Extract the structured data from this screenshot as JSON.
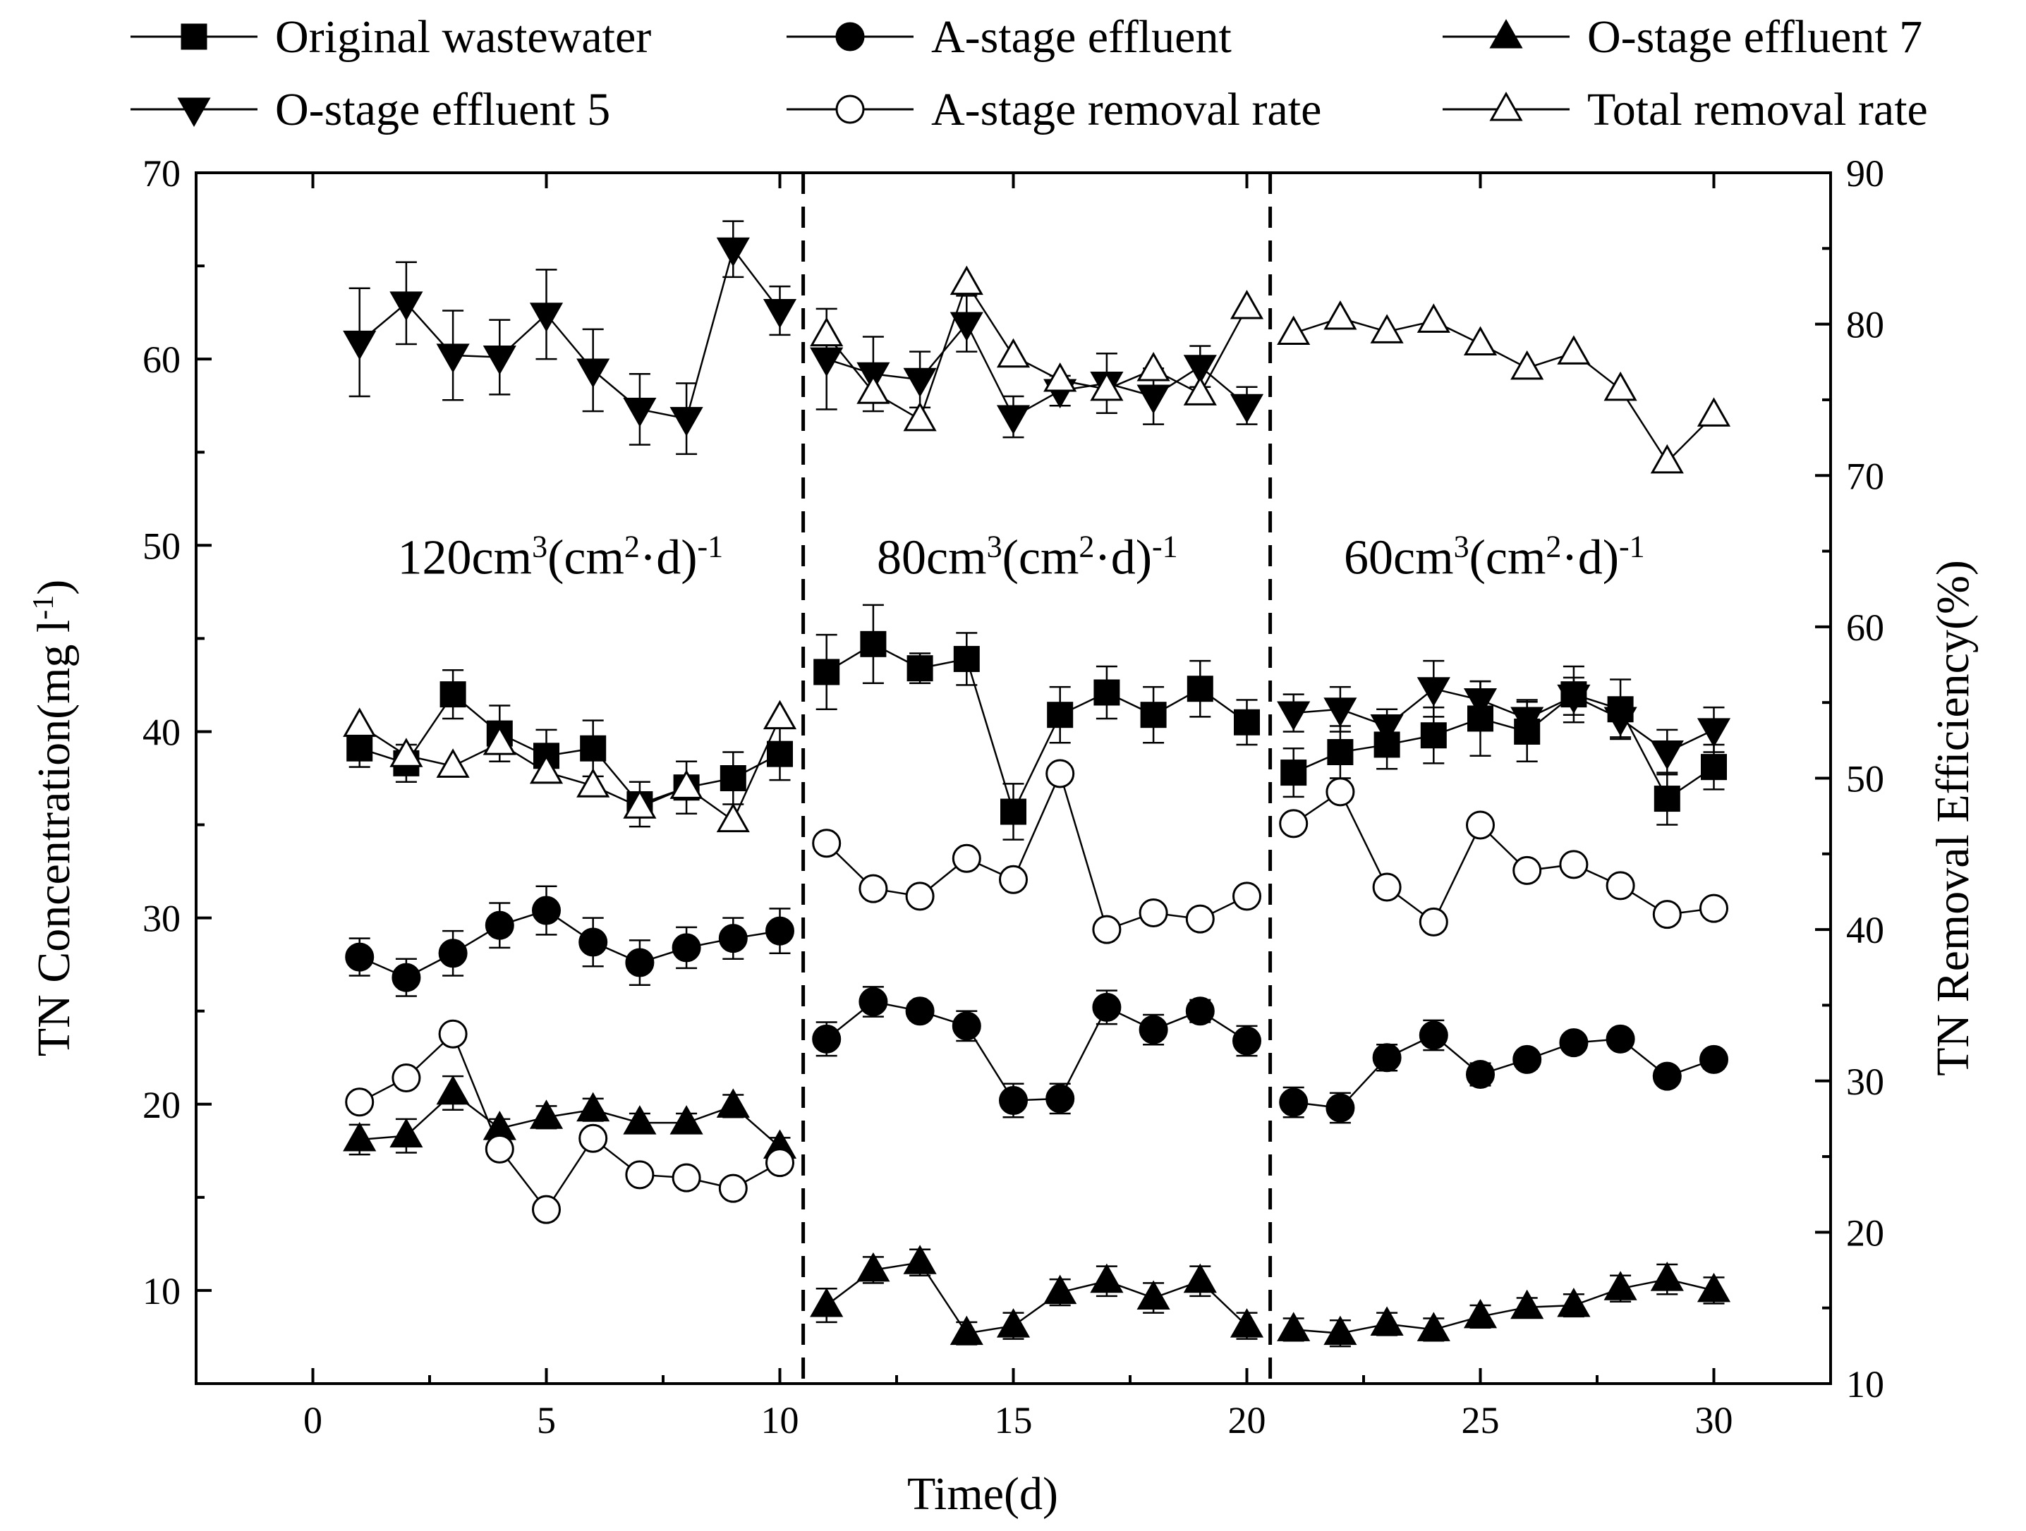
{
  "chart_data": {
    "type": "line",
    "xlabel": "Time(d)",
    "ylabel_left": "TN Concentration(mg l-1)",
    "ylabel_right": "TN Removal Efficiency(%)",
    "xlim": [
      -2.5,
      32.5
    ],
    "ylim_left": [
      5,
      70
    ],
    "ylim_right": [
      10,
      90
    ],
    "xticks": [
      "0",
      "5",
      "10",
      "15",
      "20",
      "25",
      "30"
    ],
    "yticks_left": [
      "10",
      "20",
      "30",
      "40",
      "50",
      "60",
      "70"
    ],
    "yticks_right": [
      "10",
      "20",
      "30",
      "40",
      "50",
      "60",
      "70",
      "80",
      "90"
    ],
    "dividers": [
      10.5,
      20.5
    ],
    "phases": [
      {
        "base": "120cm",
        "s1": "3",
        "mid": "(cm",
        "s2": "2",
        "tail": "·d)",
        "s3": "-1",
        "x": 5.3
      },
      {
        "base": "80cm",
        "s1": "3",
        "mid": "(cm",
        "s2": "2",
        "tail": "·d)",
        "s3": "-1",
        "x": 15.3
      },
      {
        "base": "60cm",
        "s1": "3",
        "mid": "(cm",
        "s2": "2",
        "tail": "·d)",
        "s3": "-1",
        "x": 25.3
      }
    ],
    "series": [
      {
        "name": "Original wastewater",
        "marker": "square",
        "filled": true,
        "axis": "left",
        "x": [
          1,
          2,
          3,
          4,
          5,
          6,
          7,
          8,
          9,
          10,
          11,
          12,
          13,
          14,
          15,
          16,
          17,
          18,
          19,
          20,
          21,
          22,
          23,
          24,
          25,
          26,
          27,
          28,
          29,
          30
        ],
        "y": [
          39.1,
          38.3,
          42.0,
          39.9,
          38.7,
          39.1,
          36.1,
          37.0,
          37.5,
          38.8,
          43.2,
          44.7,
          43.4,
          43.9,
          35.7,
          40.9,
          42.1,
          40.9,
          42.3,
          40.5,
          37.8,
          38.9,
          39.3,
          39.8,
          40.7,
          40.0,
          42.0,
          41.2,
          36.4,
          38.1
        ],
        "err": [
          1.0,
          1.0,
          1.3,
          1.5,
          1.4,
          1.5,
          1.2,
          1.4,
          1.4,
          1.4,
          2.0,
          2.1,
          0.8,
          1.4,
          1.5,
          1.5,
          1.4,
          1.5,
          1.5,
          1.2,
          1.3,
          1.4,
          1.3,
          1.5,
          2.0,
          1.6,
          1.5,
          1.6,
          1.4,
          1.2
        ]
      },
      {
        "name": "A-stage effluent",
        "marker": "circle",
        "filled": true,
        "axis": "left",
        "x": [
          1,
          2,
          3,
          4,
          5,
          6,
          7,
          8,
          9,
          10,
          11,
          12,
          13,
          14,
          15,
          16,
          17,
          18,
          19,
          20,
          21,
          22,
          23,
          24,
          25,
          26,
          27,
          28,
          29,
          30
        ],
        "y": [
          27.9,
          26.8,
          28.1,
          29.6,
          30.4,
          28.7,
          27.6,
          28.4,
          28.9,
          29.3,
          23.5,
          25.5,
          25.0,
          24.2,
          20.2,
          20.3,
          25.2,
          24.0,
          25.0,
          23.4,
          20.1,
          19.8,
          22.5,
          23.7,
          21.6,
          22.4,
          23.3,
          23.5,
          21.5,
          22.4
        ],
        "err": [
          1.0,
          1.0,
          1.2,
          1.2,
          1.3,
          1.3,
          1.2,
          1.1,
          1.1,
          1.2,
          0.9,
          0.8,
          0.5,
          0.8,
          0.9,
          0.8,
          0.9,
          0.8,
          0.6,
          0.8,
          0.8,
          0.8,
          0.7,
          0.8,
          0.6,
          0.5,
          0.4,
          0.4,
          0.4,
          0.5
        ]
      },
      {
        "name": "O-stage effluent 7",
        "marker": "triangle-up",
        "filled": true,
        "axis": "left",
        "x": [
          1,
          2,
          3,
          4,
          5,
          6,
          7,
          8,
          9,
          10,
          11,
          12,
          13,
          14,
          15,
          16,
          17,
          18,
          19,
          20,
          21,
          22,
          23,
          24,
          25,
          26,
          27,
          28,
          29,
          30
        ],
        "y": [
          18.1,
          18.3,
          20.6,
          18.7,
          19.3,
          19.7,
          19.0,
          19.0,
          19.9,
          17.7,
          9.2,
          11.1,
          11.5,
          7.7,
          8.1,
          9.9,
          10.5,
          9.6,
          10.5,
          8.1,
          7.9,
          7.7,
          8.2,
          7.9,
          8.6,
          9.1,
          9.2,
          10.1,
          10.6,
          10.0
        ],
        "err": [
          0.8,
          0.9,
          0.9,
          0.5,
          0.6,
          0.6,
          0.5,
          0.5,
          0.6,
          0.5,
          0.9,
          0.7,
          0.7,
          0.6,
          0.7,
          0.7,
          0.8,
          0.8,
          0.8,
          0.7,
          0.6,
          0.7,
          0.6,
          0.6,
          0.6,
          0.5,
          0.6,
          0.7,
          0.8,
          0.7
        ]
      },
      {
        "name": "O-stage effluent 5",
        "marker": "triangle-down",
        "filled": true,
        "axis": "left",
        "x": [
          1,
          2,
          3,
          4,
          5,
          6,
          7,
          8,
          9,
          10,
          11,
          12,
          13,
          14,
          15,
          16,
          17,
          18,
          19,
          20,
          21,
          22,
          23,
          24,
          25,
          26,
          27,
          28,
          29,
          30
        ],
        "y": [
          60.9,
          63.0,
          60.2,
          60.1,
          62.4,
          59.4,
          57.3,
          56.8,
          65.9,
          62.6,
          60.0,
          59.2,
          58.9,
          61.9,
          56.9,
          58.3,
          58.7,
          58.0,
          59.6,
          57.5,
          41.0,
          41.2,
          40.3,
          42.3,
          41.7,
          40.7,
          41.9,
          40.7,
          38.9,
          40.1
        ],
        "err": [
          2.9,
          2.2,
          2.4,
          2.0,
          2.4,
          2.2,
          1.9,
          1.9,
          1.5,
          1.3,
          2.7,
          2.0,
          1.5,
          1.5,
          1.1,
          0.8,
          1.6,
          1.5,
          1.1,
          1.0,
          1.0,
          1.2,
          0.9,
          1.5,
          1.0,
          1.0,
          1.0,
          1.0,
          1.2,
          1.2
        ]
      },
      {
        "name": "A-stage removal rate",
        "marker": "circle",
        "filled": false,
        "axis": "right",
        "x": [
          1,
          2,
          3,
          4,
          5,
          6,
          7,
          8,
          9,
          10,
          11,
          12,
          13,
          14,
          15,
          16,
          17,
          18,
          19,
          20,
          21,
          22,
          23,
          24,
          25,
          26,
          27,
          28,
          29,
          30
        ],
        "y": [
          28.6,
          30.2,
          33.1,
          25.5,
          21.5,
          26.2,
          23.8,
          23.6,
          22.9,
          24.6,
          45.7,
          42.7,
          42.2,
          44.7,
          43.3,
          50.3,
          40.0,
          41.1,
          40.7,
          42.2,
          47.0,
          49.1,
          42.8,
          40.5,
          46.9,
          43.9,
          44.3,
          42.9,
          41.0,
          41.4
        ],
        "err": []
      },
      {
        "name": "Total removal rate",
        "marker": "triangle-up",
        "filled": false,
        "axis": "right",
        "x": [
          1,
          2,
          3,
          4,
          5,
          6,
          7,
          8,
          9,
          10,
          11,
          12,
          13,
          14,
          15,
          16,
          17,
          18,
          19,
          20,
          21,
          22,
          23,
          24,
          25,
          26,
          27,
          28,
          29,
          30
        ],
        "y": [
          53.5,
          51.5,
          50.8,
          52.3,
          50.4,
          49.5,
          48.1,
          49.4,
          47.2,
          54.0,
          79.3,
          75.5,
          73.7,
          82.7,
          77.9,
          76.3,
          75.7,
          77.0,
          75.4,
          81.1,
          79.4,
          80.4,
          79.5,
          80.2,
          78.7,
          77.1,
          78.1,
          75.7,
          70.9,
          74.0
        ],
        "err": []
      }
    ]
  }
}
